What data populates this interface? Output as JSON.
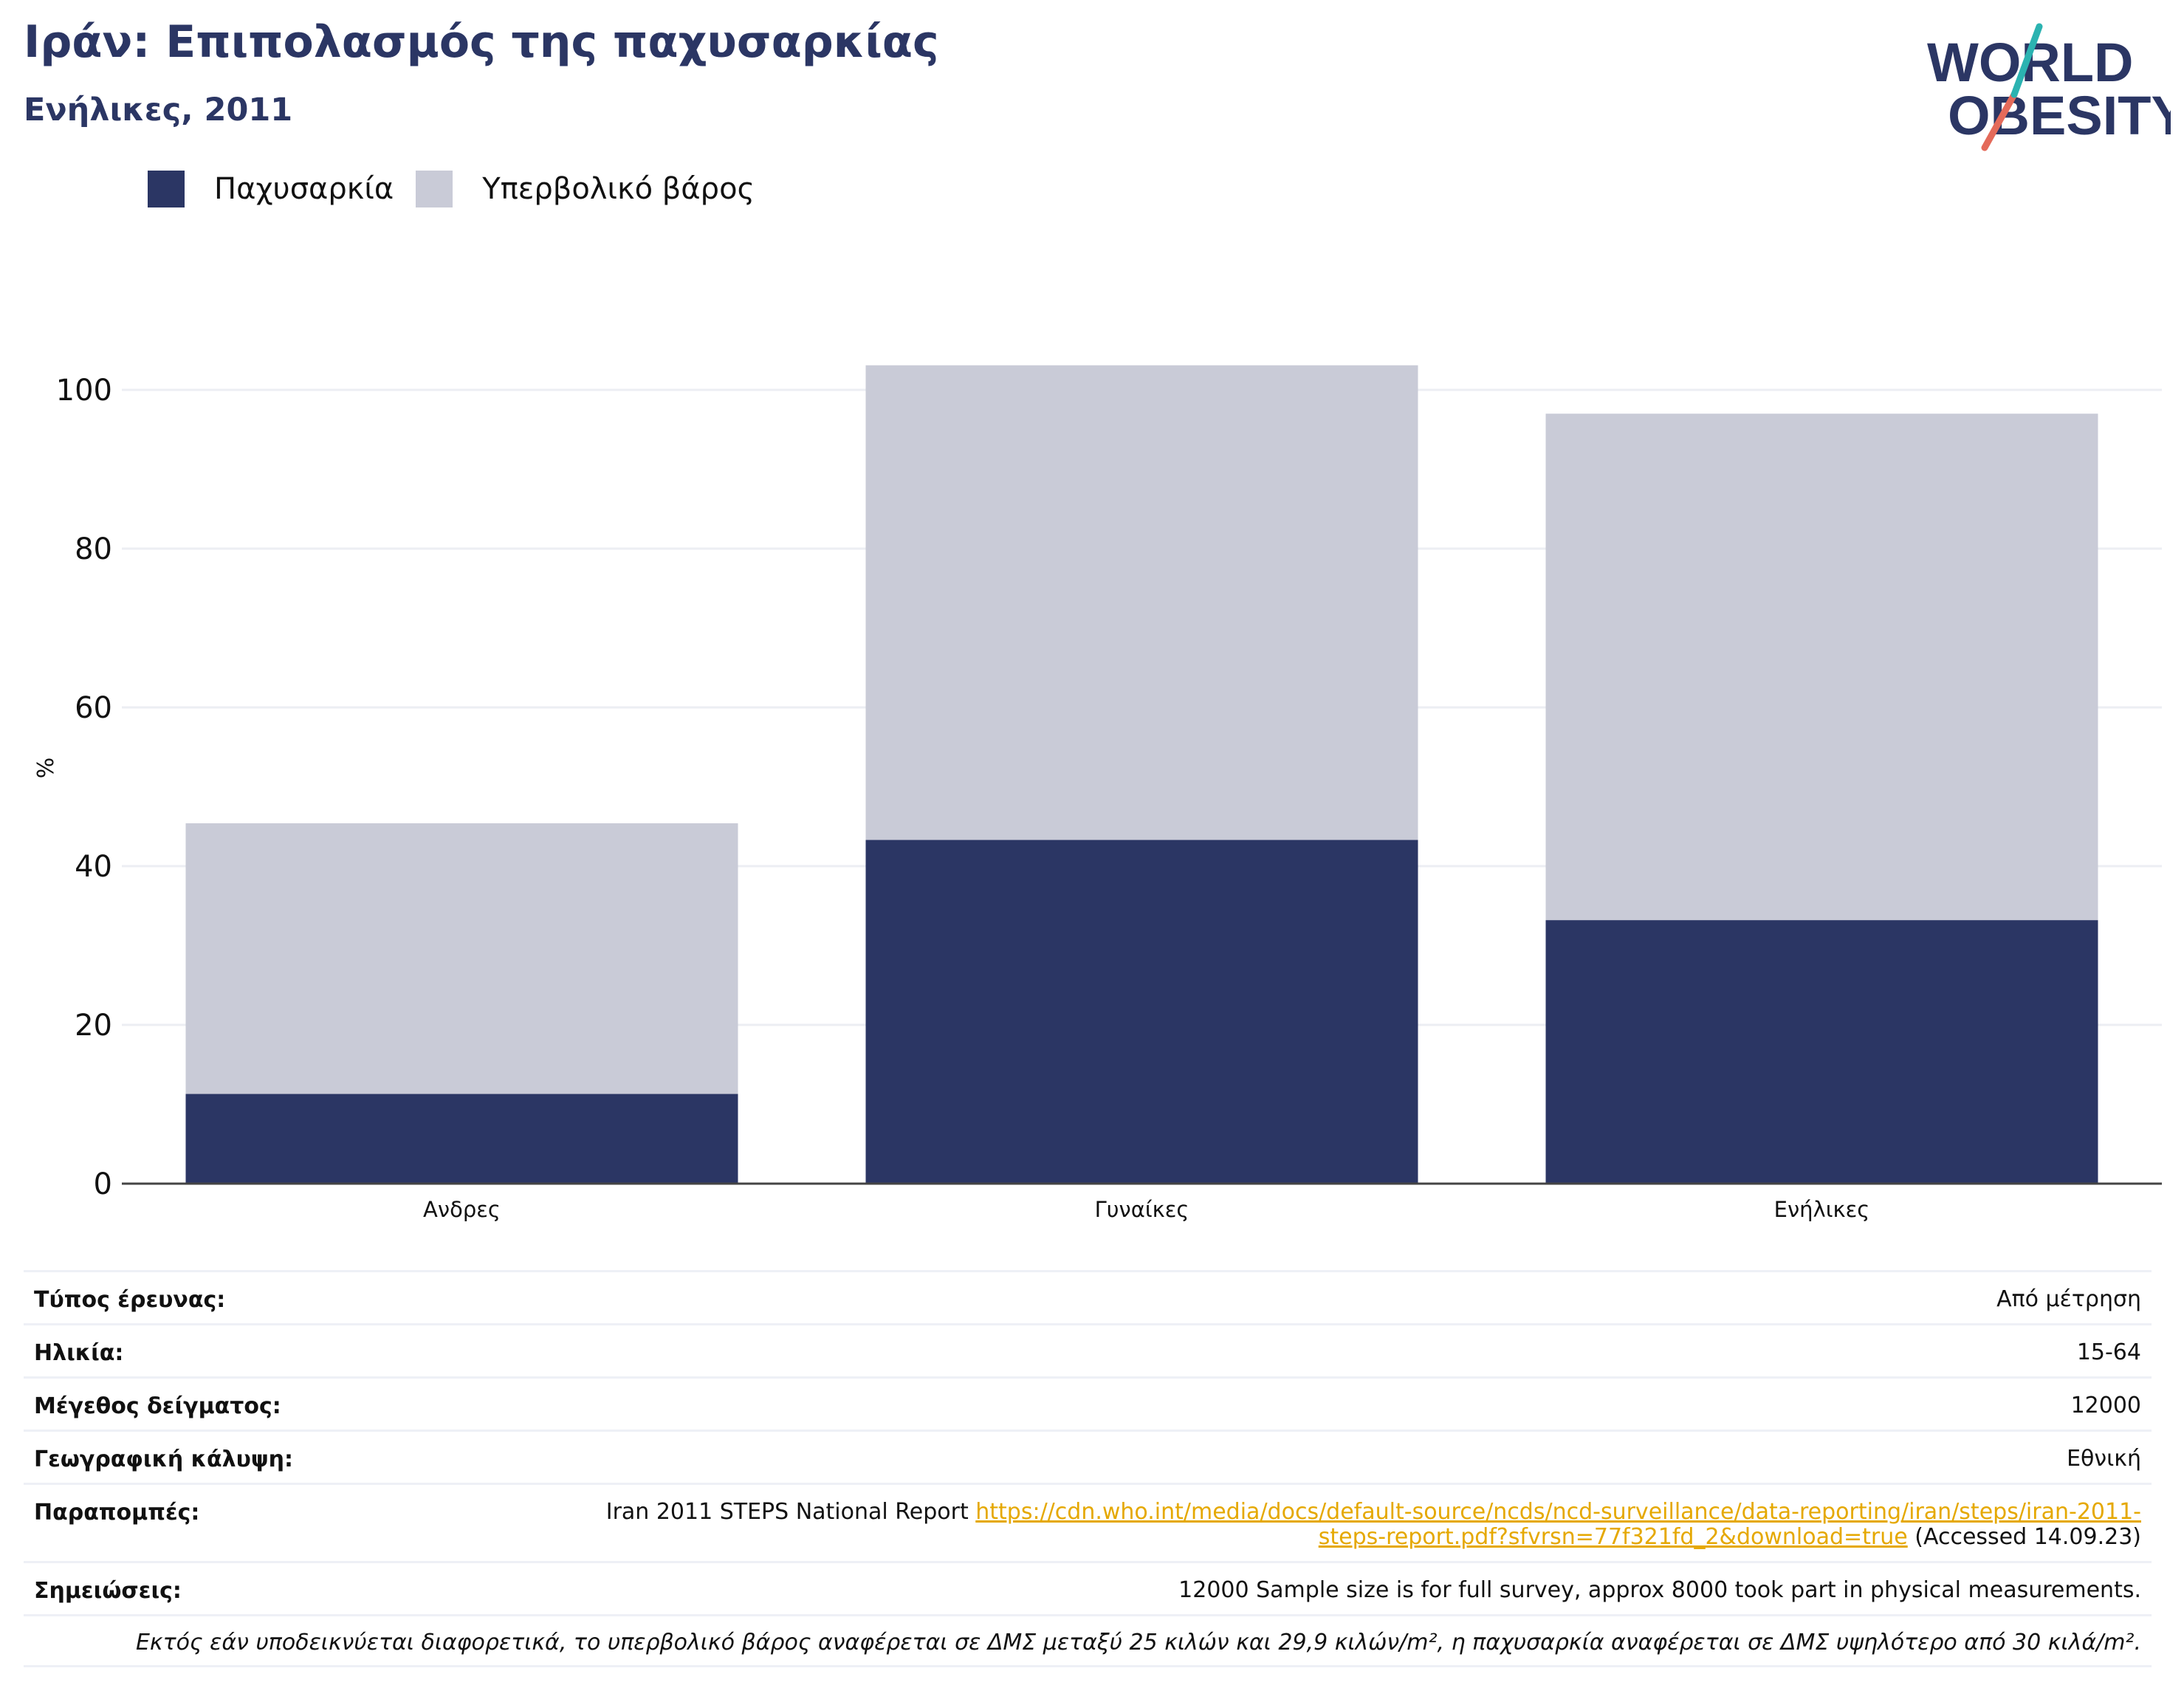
{
  "header": {
    "title": "Ιράν: Επιπολασμός της παχυσαρκίας",
    "subtitle": "Ενήλικες, 2011"
  },
  "logo": {
    "line1": "WORLD",
    "line2": "OBESITY"
  },
  "colors": {
    "obesity": "#2b3664",
    "overweight": "#c9cbd7",
    "title": "#2b3664",
    "link": "#e5a800"
  },
  "legend": [
    {
      "label": "Παχυσαρκία",
      "color": "#2b3664"
    },
    {
      "label": "Υπερβολικό βάρος",
      "color": "#c9cbd7"
    }
  ],
  "chart_data": {
    "type": "bar",
    "stacked": true,
    "categories": [
      "Ανδρες",
      "Γυναίκες",
      "Ενήλικες"
    ],
    "series": [
      {
        "name": "Παχυσαρκία",
        "values": [
          11.3,
          43.3,
          33.2
        ]
      },
      {
        "name": "Υπερβολικό βάρος",
        "values": [
          34.1,
          59.8,
          63.8
        ]
      }
    ],
    "ylabel": "%",
    "yticks": [
      0,
      20,
      40,
      60,
      80,
      100
    ],
    "ylim": [
      0,
      110
    ],
    "grid": true,
    "legend_position": "top-left"
  },
  "info": [
    {
      "key": "Τύπος έρευνας:",
      "value": "Από μέτρηση"
    },
    {
      "key": "Ηλικία:",
      "value": "15-64"
    },
    {
      "key": "Μέγεθος δείγματος:",
      "value": "12000"
    },
    {
      "key": "Γεωγραφική κάλυψη:",
      "value": "Εθνική"
    },
    {
      "key": "Παραπομπές:",
      "value_prefix": "Iran 2011 STEPS National Report ",
      "link": "https://cdn.who.int/media/docs/default-source/ncds/ncd-surveillance/data-reporting/iran/steps/iran-2011-steps-report.pdf?sfvrsn=77f321fd_2&download=true",
      "value_suffix": " (Accessed 14.09.23)"
    },
    {
      "key": "Σημειώσεις:",
      "value": "12000 Sample size is for full survey, approx 8000 took part in physical measurements."
    }
  ],
  "footnote": "Εκτός εάν υποδεικνύεται διαφορετικά, το υπερβολικό βάρος αναφέρεται σε ΔΜΣ μεταξύ 25 κιλών και 29,9 κιλών/m², η παχυσαρκία αναφέρεται σε ΔΜΣ υψηλότερο από 30 κιλά/m²."
}
